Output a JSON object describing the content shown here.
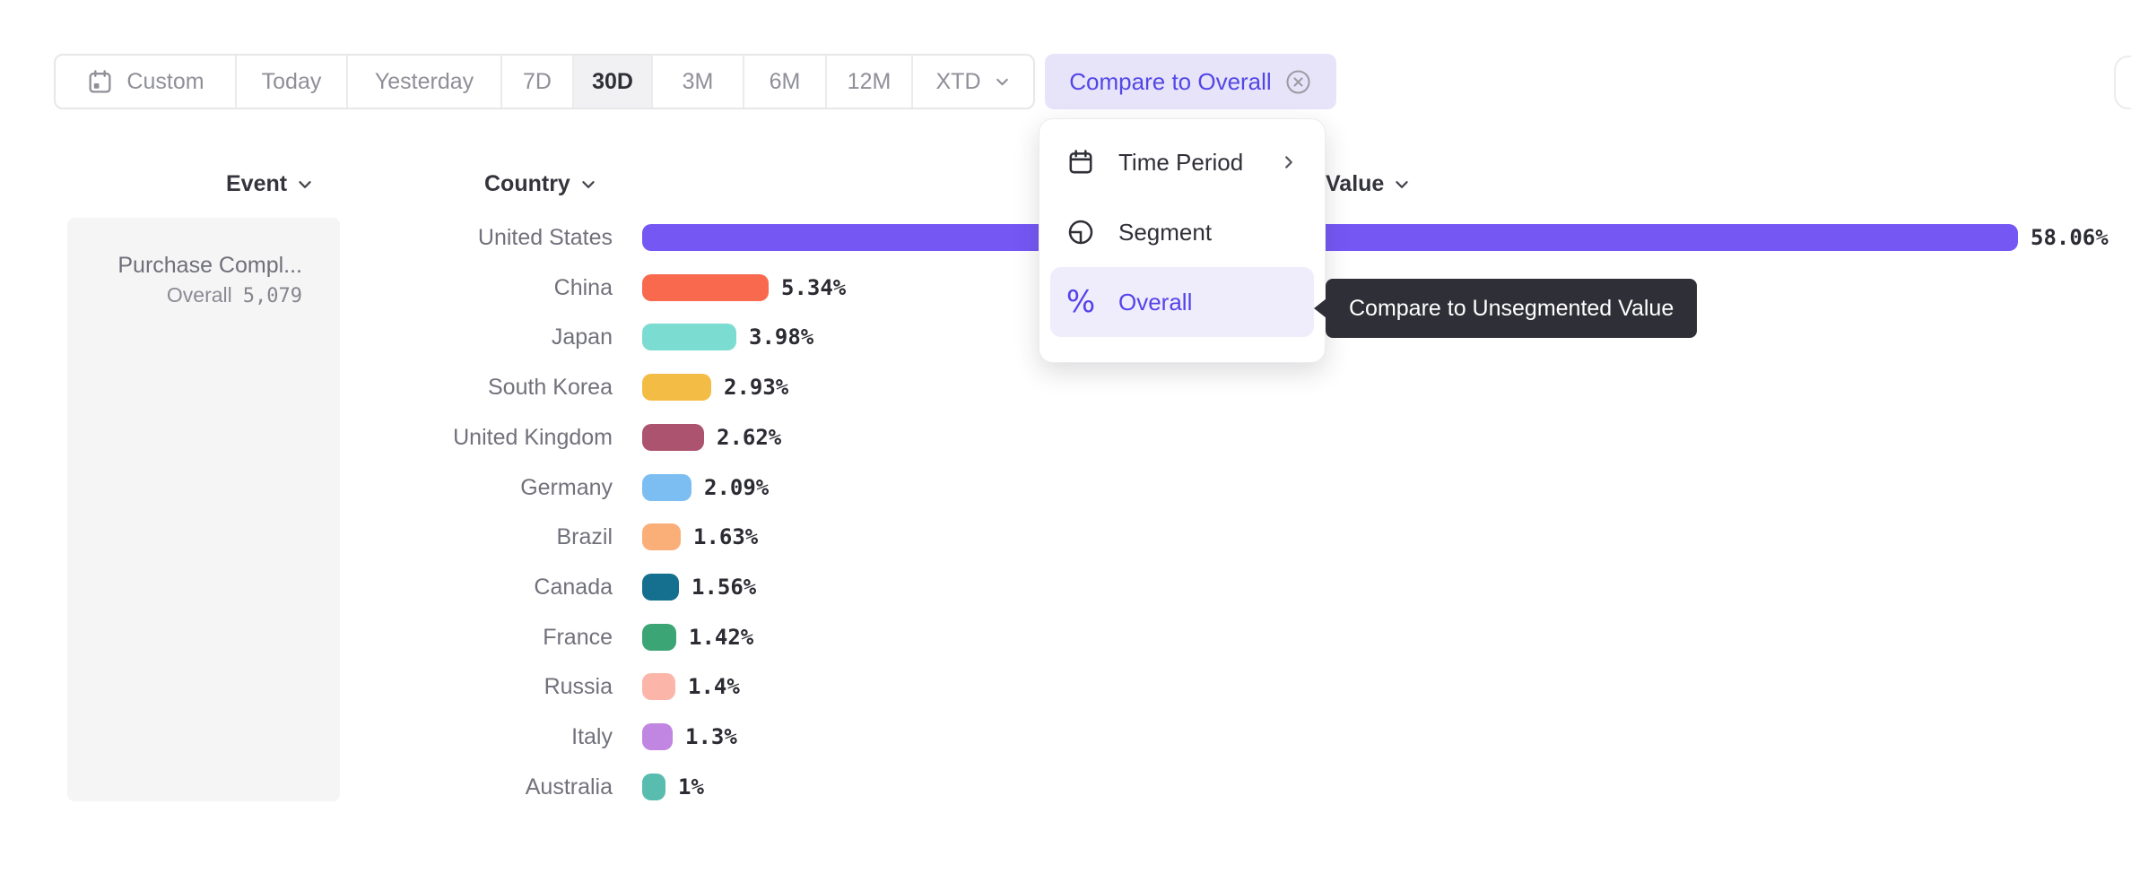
{
  "toolbar": {
    "items": [
      {
        "label": "Custom",
        "icon": "calendar",
        "selected": false
      },
      {
        "label": "Today",
        "selected": false
      },
      {
        "label": "Yesterday",
        "selected": false
      },
      {
        "label": "7D",
        "selected": false
      },
      {
        "label": "30D",
        "selected": true
      },
      {
        "label": "3M",
        "selected": false
      },
      {
        "label": "6M",
        "selected": false
      },
      {
        "label": "12M",
        "selected": false
      },
      {
        "label": "XTD",
        "trailing_icon": "chevron-down",
        "selected": false
      }
    ]
  },
  "compare_button": {
    "label": "Compare to Overall",
    "icon": "circle-x",
    "text_color": "#5246E5",
    "bg_color": "#E7E4FA"
  },
  "dropdown": {
    "items": [
      {
        "label": "Time Period",
        "icon": "calendar",
        "trailing": "chevron-right",
        "active": false
      },
      {
        "label": "Segment",
        "icon": "segment",
        "trailing": null,
        "active": false
      },
      {
        "label": "Overall",
        "icon": "percent",
        "trailing": null,
        "active": true
      }
    ],
    "active_color": "#5443EB",
    "active_bg": "#EFECFB"
  },
  "tooltip": {
    "text": "Compare to Unsegmented Value",
    "bg_color": "#2F2F37"
  },
  "headers": {
    "event": "Event",
    "country": "Country",
    "value": "Value"
  },
  "event_panel": {
    "name": "Purchase Compl...",
    "overall_label": "Overall",
    "overall_value": "5,079"
  },
  "chart_data": {
    "type": "bar",
    "orientation": "horizontal",
    "title": "",
    "xlabel": "Value",
    "ylabel": "Country",
    "unit": "%",
    "xlim": [
      0,
      60
    ],
    "grid": false,
    "categories": [
      "United States",
      "China",
      "Japan",
      "South Korea",
      "United Kingdom",
      "Germany",
      "Brazil",
      "Canada",
      "France",
      "Russia",
      "Italy",
      "Australia"
    ],
    "values": [
      58.06,
      5.34,
      3.98,
      2.93,
      2.62,
      2.09,
      1.63,
      1.56,
      1.42,
      1.4,
      1.3,
      1
    ],
    "value_labels": [
      "58.06%",
      "5.34%",
      "3.98%",
      "2.93%",
      "2.62%",
      "2.09%",
      "1.63%",
      "1.56%",
      "1.42%",
      "1.4%",
      "1.3%",
      "1%"
    ],
    "bar_colors": [
      "#7557F4",
      "#F9694E",
      "#7BDCD1",
      "#F3BD45",
      "#AC5370",
      "#7CBEF2",
      "#FAAF78",
      "#156F8E",
      "#3CA575",
      "#FBB6A9",
      "#C086E1",
      "#58BCAE"
    ]
  }
}
